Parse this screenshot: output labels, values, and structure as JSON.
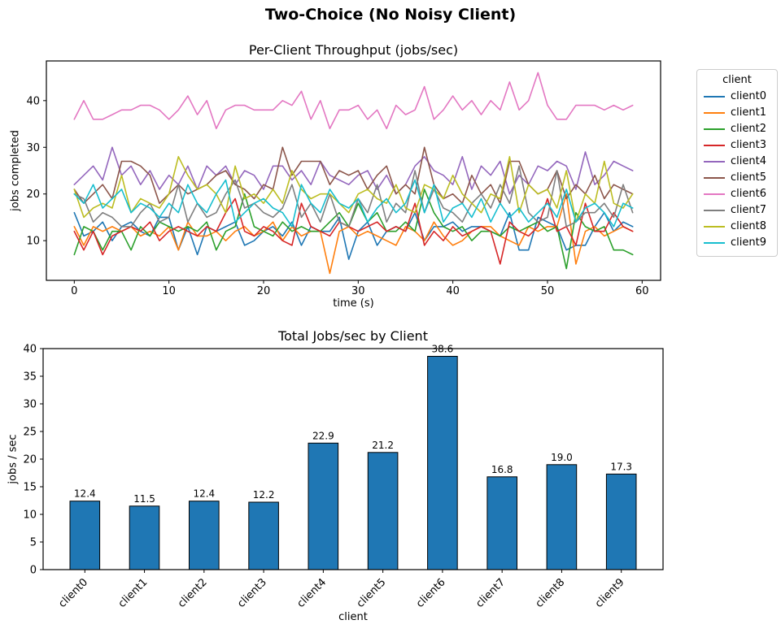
{
  "figure": {
    "suptitle": "Two-Choice (No Noisy Client)"
  },
  "legend": {
    "title": "client",
    "entries": [
      {
        "label": "client0",
        "color": "#1f77b4"
      },
      {
        "label": "client1",
        "color": "#ff7f0e"
      },
      {
        "label": "client2",
        "color": "#2ca02c"
      },
      {
        "label": "client3",
        "color": "#d62728"
      },
      {
        "label": "client4",
        "color": "#9467bd"
      },
      {
        "label": "client5",
        "color": "#8c564b"
      },
      {
        "label": "client6",
        "color": "#e377c2"
      },
      {
        "label": "client7",
        "color": "#7f7f7f"
      },
      {
        "label": "client8",
        "color": "#bcbd22"
      },
      {
        "label": "client9",
        "color": "#17becf"
      }
    ]
  },
  "chart_data": [
    {
      "type": "line",
      "title": "Per-Client Throughput (jobs/sec)",
      "xlabel": "time (s)",
      "ylabel": "jobs completed",
      "x_range": [
        0,
        59
      ],
      "xlim": [
        -2.95,
        61.95
      ],
      "ylim": [
        1.5,
        48.5
      ],
      "xticks": [
        0,
        10,
        20,
        30,
        40,
        50,
        60
      ],
      "yticks": [
        10,
        20,
        30,
        40
      ],
      "grid": false,
      "legend_position": "outside-right",
      "series": [
        {
          "name": "client0",
          "color": "#1f77b4",
          "values": [
            16,
            11,
            12,
            14,
            10,
            13,
            14,
            12,
            11,
            15,
            15,
            8,
            13,
            7,
            13,
            12,
            13,
            14,
            9,
            10,
            12,
            13,
            11,
            14,
            9,
            13,
            12,
            12,
            15,
            6,
            12,
            14,
            9,
            12,
            13,
            12,
            16,
            10,
            13,
            13,
            14,
            12,
            13,
            13,
            12,
            11,
            16,
            8,
            8,
            15,
            14,
            13,
            8,
            9,
            9,
            13,
            16,
            12,
            14,
            13
          ]
        },
        {
          "name": "client1",
          "color": "#ff7f0e",
          "values": [
            13,
            9,
            13,
            12,
            13,
            12,
            13,
            11,
            12,
            11,
            13,
            8,
            14,
            11,
            11,
            12,
            10,
            12,
            13,
            11,
            12,
            14,
            10,
            13,
            11,
            12,
            12,
            3,
            12,
            13,
            11,
            12,
            11,
            10,
            9,
            13,
            12,
            10,
            14,
            11,
            9,
            10,
            12,
            13,
            13,
            11,
            10,
            9,
            13,
            12,
            13,
            13,
            20,
            5,
            12,
            13,
            11,
            12,
            13,
            12
          ]
        },
        {
          "name": "client2",
          "color": "#2ca02c",
          "values": [
            7,
            13,
            12,
            8,
            12,
            12,
            8,
            13,
            11,
            14,
            13,
            12,
            13,
            12,
            14,
            8,
            12,
            13,
            20,
            13,
            12,
            11,
            14,
            12,
            13,
            12,
            12,
            14,
            16,
            13,
            18,
            14,
            16,
            12,
            12,
            14,
            12,
            21,
            16,
            13,
            12,
            13,
            10,
            12,
            12,
            11,
            13,
            12,
            13,
            14,
            12,
            13,
            4,
            16,
            13,
            12,
            13,
            8,
            8,
            7
          ]
        },
        {
          "name": "client3",
          "color": "#d62728",
          "values": [
            12,
            8,
            12,
            7,
            11,
            12,
            13,
            12,
            14,
            10,
            12,
            13,
            12,
            11,
            13,
            12,
            16,
            19,
            12,
            11,
            13,
            12,
            10,
            9,
            18,
            13,
            12,
            11,
            14,
            13,
            12,
            13,
            14,
            12,
            13,
            12,
            18,
            9,
            12,
            10,
            13,
            11,
            12,
            13,
            12,
            5,
            14,
            12,
            11,
            13,
            19,
            12,
            13,
            9,
            18,
            12,
            12,
            16,
            13,
            12
          ]
        },
        {
          "name": "client4",
          "color": "#9467bd",
          "values": [
            22,
            24,
            26,
            23,
            30,
            24,
            26,
            22,
            25,
            21,
            24,
            22,
            26,
            21,
            26,
            24,
            26,
            22,
            25,
            24,
            21,
            26,
            26,
            23,
            25,
            22,
            27,
            24,
            23,
            22,
            24,
            25,
            21,
            24,
            20,
            22,
            26,
            28,
            25,
            24,
            22,
            28,
            21,
            26,
            24,
            27,
            20,
            24,
            22,
            26,
            25,
            27,
            26,
            21,
            29,
            22,
            24,
            27,
            26,
            25
          ]
        },
        {
          "name": "client5",
          "color": "#8c564b",
          "values": [
            21,
            18,
            20,
            22,
            19,
            27,
            27,
            26,
            24,
            18,
            20,
            22,
            20,
            21,
            22,
            24,
            25,
            22,
            21,
            19,
            22,
            21,
            30,
            24,
            27,
            27,
            27,
            22,
            25,
            24,
            25,
            21,
            24,
            26,
            20,
            22,
            20,
            30,
            22,
            19,
            20,
            18,
            24,
            20,
            22,
            18,
            27,
            27,
            22,
            20,
            21,
            25,
            19,
            22,
            20,
            24,
            19,
            22,
            21,
            20
          ]
        },
        {
          "name": "client6",
          "color": "#e377c2",
          "values": [
            36,
            40,
            36,
            36,
            37,
            38,
            38,
            39,
            39,
            38,
            36,
            38,
            41,
            37,
            40,
            34,
            38,
            39,
            39,
            38,
            38,
            38,
            40,
            39,
            42,
            36,
            40,
            34,
            38,
            38,
            39,
            36,
            38,
            34,
            39,
            37,
            38,
            43,
            36,
            38,
            41,
            38,
            40,
            37,
            40,
            38,
            44,
            38,
            40,
            46,
            39,
            36,
            36,
            39,
            39,
            39,
            38,
            39,
            38,
            39
          ]
        },
        {
          "name": "client7",
          "color": "#7f7f7f",
          "values": [
            20,
            19,
            14,
            16,
            15,
            13,
            13,
            16,
            18,
            14,
            15,
            22,
            14,
            18,
            15,
            16,
            20,
            23,
            17,
            18,
            16,
            15,
            17,
            22,
            15,
            18,
            14,
            20,
            14,
            13,
            19,
            16,
            22,
            14,
            18,
            16,
            25,
            16,
            21,
            17,
            16,
            14,
            18,
            20,
            17,
            22,
            18,
            26,
            16,
            14,
            15,
            25,
            13,
            14,
            16,
            16,
            18,
            15,
            22,
            16
          ]
        },
        {
          "name": "client8",
          "color": "#bcbd22",
          "values": [
            21,
            15,
            17,
            18,
            17,
            24,
            16,
            19,
            18,
            17,
            20,
            28,
            24,
            21,
            22,
            20,
            16,
            26,
            19,
            20,
            18,
            21,
            18,
            25,
            21,
            19,
            20,
            20,
            18,
            16,
            20,
            21,
            19,
            18,
            22,
            17,
            16,
            22,
            21,
            19,
            24,
            20,
            18,
            16,
            20,
            19,
            28,
            16,
            22,
            20,
            21,
            17,
            25,
            14,
            20,
            18,
            27,
            18,
            17,
            20
          ]
        },
        {
          "name": "client9",
          "color": "#17becf",
          "values": [
            20,
            18,
            22,
            17,
            19,
            21,
            16,
            18,
            17,
            15,
            18,
            16,
            22,
            18,
            16,
            20,
            23,
            14,
            16,
            18,
            19,
            17,
            16,
            13,
            22,
            18,
            16,
            21,
            18,
            17,
            19,
            14,
            17,
            19,
            16,
            18,
            23,
            16,
            22,
            14,
            17,
            18,
            15,
            19,
            14,
            18,
            15,
            17,
            14,
            16,
            18,
            15,
            21,
            14,
            17,
            18,
            16,
            13,
            18,
            17
          ]
        }
      ]
    },
    {
      "type": "bar",
      "title": "Total Jobs/sec by Client",
      "xlabel": "client",
      "ylabel": "jobs / sec",
      "categories": [
        "client0",
        "client1",
        "client2",
        "client3",
        "client4",
        "client5",
        "client6",
        "client7",
        "client8",
        "client9"
      ],
      "values": [
        12.4,
        11.5,
        12.4,
        12.2,
        22.9,
        21.2,
        38.6,
        16.8,
        19.0,
        17.3
      ],
      "bar_labels": [
        "12.4",
        "11.5",
        "12.4",
        "12.2",
        "22.9",
        "21.2",
        "38.6",
        "16.8",
        "19.0",
        "17.3"
      ],
      "ylim": [
        0,
        40
      ],
      "yticks": [
        0,
        5,
        10,
        15,
        20,
        25,
        30,
        35,
        40
      ],
      "grid": false,
      "bar_color": "#1f77b4",
      "bar_edge_color": "#000000",
      "xtick_rotation": 45
    }
  ]
}
